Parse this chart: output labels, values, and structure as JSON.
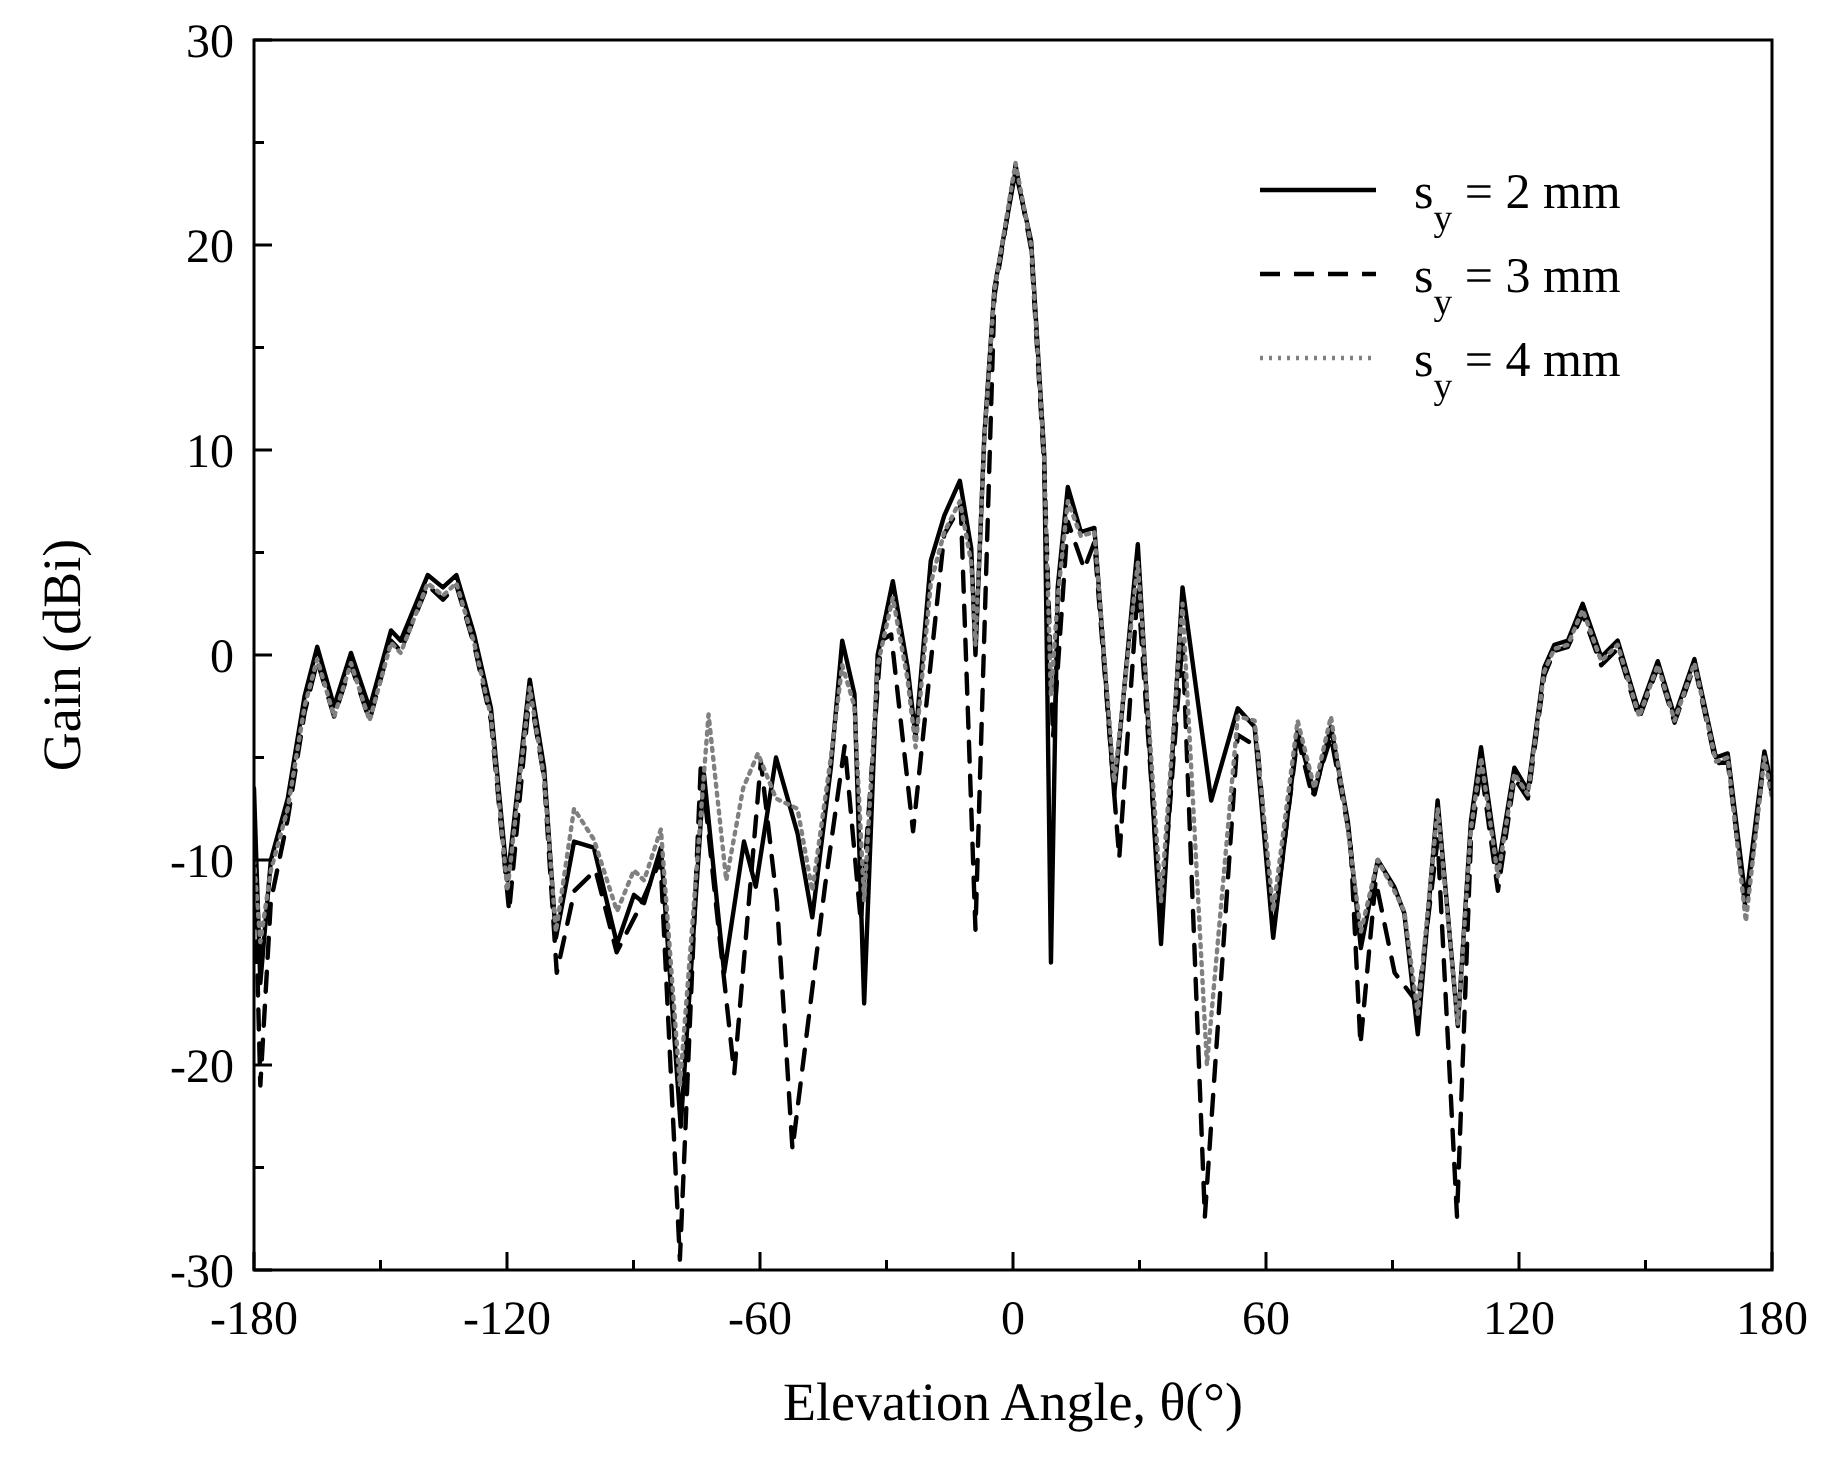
{
  "chart_data": {
    "type": "line",
    "xlabel": "Elevation Angle, θ(°)",
    "ylabel": "Gain (dBi)",
    "xlim": [
      -180,
      180
    ],
    "ylim": [
      -30,
      30
    ],
    "xticks": [
      -180,
      {
        "value": -150,
        "label": null
      },
      -120,
      {
        "value": -90,
        "label": null
      },
      -60,
      {
        "value": -30,
        "label": null
      },
      0,
      {
        "value": 30,
        "label": null
      },
      60,
      {
        "value": 90,
        "label": null
      },
      120,
      {
        "value": 150,
        "label": null
      },
      180
    ],
    "yticks": [
      -30,
      {
        "value": -25,
        "label": null
      },
      -20,
      {
        "value": -15,
        "label": null
      },
      -10,
      {
        "value": -5,
        "label": null
      },
      0,
      {
        "value": 5,
        "label": null
      },
      10,
      {
        "value": 15,
        "label": null
      },
      20,
      {
        "value": 25,
        "label": null
      },
      30
    ],
    "grid": false,
    "legend": "top right",
    "series": [
      {
        "name": "s$_{y}$ = 2 mm",
        "color": "#000000",
        "line_style": "solid",
        "x": [
          -180,
          -178.5,
          -176,
          -172,
          -168,
          -165,
          -161,
          -157,
          -152.6,
          -147.5,
          -145.2,
          -138.8,
          -135.2,
          -132,
          -127.8,
          -123.8,
          -119.9,
          -114.6,
          -111.2,
          -108.4,
          -104.1,
          -99.4,
          -93.9,
          -89.9,
          -87.5,
          -83.5,
          -78.8,
          -73.3,
          -68.5,
          -63.8,
          -61,
          -56.2,
          -51.1,
          -47.6,
          -43.2,
          -40.5,
          -37.6,
          -35.3,
          -32.1,
          -28.5,
          -25,
          -23.1,
          -19.5,
          -16.3,
          -12.6,
          -9.9,
          -8.9,
          -6.8,
          -4.4,
          0.6,
          4.3,
          7.4,
          9,
          10.6,
          13,
          16.1,
          19.3,
          24,
          29.6,
          35.1,
          40.2,
          47,
          53.3,
          57.3,
          61.7,
          67.5,
          71.5,
          75.4,
          79.4,
          82.5,
          86.5,
          90.4,
          92.8,
          96,
          100.7,
          105.5,
          108.6,
          111,
          115,
          118.9,
          122.1,
          126,
          128.4,
          131.6,
          135.1,
          139.5,
          143.4,
          148.5,
          152.9,
          156.9,
          161.6,
          166.7,
          169.5,
          173.8,
          178.2,
          180
        ],
        "values": [
          -6.5,
          -16,
          -10,
          -7,
          -2,
          0.4,
          -2.5,
          0.1,
          -2.6,
          1.2,
          0.7,
          3.9,
          3.3,
          3.9,
          1,
          -2.6,
          -11,
          -1.2,
          -5.5,
          -13.8,
          -9.1,
          -9.4,
          -14.1,
          -11.7,
          -12.1,
          -9.4,
          -23,
          -5.8,
          -15.5,
          -9.1,
          -11.3,
          -5,
          -8.7,
          -12.8,
          -5.5,
          0.7,
          -1.9,
          -17,
          0,
          3.6,
          -0.6,
          -4,
          4.6,
          6.8,
          8.5,
          5.2,
          0,
          10.7,
          17.9,
          23.6,
          20.2,
          9.8,
          -15,
          3.3,
          8.2,
          6,
          6.2,
          -6.8,
          5.4,
          -14.1,
          3.3,
          -7.1,
          -2.6,
          -3.5,
          -13.8,
          -3.7,
          -6.8,
          -3.5,
          -8.1,
          -14.3,
          -10,
          -11.3,
          -12.6,
          -18.5,
          -7.1,
          -18.1,
          -8.1,
          -4.5,
          -10.4,
          -5.5,
          -6.6,
          -0.6,
          0.5,
          0.7,
          2.5,
          -0.1,
          0.7,
          -2.8,
          -0.3,
          -3,
          -0.2,
          -5,
          -4.8,
          -12,
          -4.7,
          -6.5
        ]
      },
      {
        "name": "s$_{y}$ = 3 mm",
        "color": "#000000",
        "line_style": "dashed",
        "x": [
          -180,
          -178.5,
          -176,
          -172,
          -168,
          -165,
          -161,
          -157,
          -152.6,
          -147.5,
          -145.2,
          -138.8,
          -135.2,
          -132,
          -127.8,
          -123.8,
          -119.5,
          -114.6,
          -111.2,
          -108.2,
          -104,
          -99,
          -94,
          -89,
          -83.6,
          -79,
          -74,
          -70,
          -66.1,
          -59.8,
          -56,
          -52.3,
          -44.6,
          -39.9,
          -36.1,
          -31.3,
          -28.9,
          -23.7,
          -16.3,
          -12.4,
          -8.9,
          -4.4,
          0.6,
          4.3,
          7.4,
          9.5,
          13,
          16.9,
          19.3,
          25.2,
          29.6,
          35.1,
          40.2,
          45.5,
          53.3,
          58,
          61.7,
          67.5,
          71,
          75.4,
          80,
          82.4,
          86,
          90.5,
          96,
          100.7,
          105.3,
          108.6,
          111,
          115,
          118.9,
          122.1,
          126,
          128.4,
          131.6,
          135.1,
          139.5,
          143.4,
          148.5,
          152.9,
          156.9,
          161.6,
          166.7,
          169.5,
          173.8,
          178.2,
          180
        ],
        "values": [
          -9,
          -21,
          -12,
          -8,
          -2.8,
          -0.3,
          -3,
          -0.5,
          -3.2,
          0.7,
          0.2,
          3.4,
          2.7,
          3.4,
          0.5,
          -3.2,
          -12.5,
          -1.8,
          -6,
          -15.5,
          -11.5,
          -10.5,
          -14.5,
          -12.5,
          -10,
          -29.5,
          -5.2,
          -13,
          -20.4,
          -5.2,
          -12,
          -24.1,
          -11.3,
          -4.4,
          -13,
          0.7,
          1,
          -8.6,
          5.9,
          7.3,
          -13.4,
          17.5,
          23.9,
          19.8,
          9.2,
          -4,
          6.5,
          4.2,
          5.5,
          -9.9,
          3.3,
          -13,
          0.7,
          -27.4,
          -3.9,
          -4.5,
          -13.5,
          -4,
          -6.9,
          -4,
          -9,
          -19,
          -11,
          -15.5,
          -17,
          -9,
          -27.4,
          -9,
          -5.5,
          -11.5,
          -6,
          -7,
          -1,
          0.2,
          0.4,
          2,
          -0.5,
          0.3,
          -3.1,
          -0.6,
          -3.3,
          -0.5,
          -5.3,
          -5.2,
          -12.5,
          -5,
          -6.8
        ]
      },
      {
        "name": "s$_{y}$ = 4 mm",
        "color": "#808080",
        "line_style": "dotted",
        "x": [
          -180,
          -178.5,
          -176,
          -172,
          -168,
          -165,
          -161,
          -157,
          -152.6,
          -147.5,
          -145.2,
          -138.8,
          -135.2,
          -132,
          -127.8,
          -123.8,
          -119.9,
          -114.6,
          -111.2,
          -108.4,
          -104.1,
          -99.4,
          -93.9,
          -89.9,
          -87.5,
          -83.5,
          -79,
          -72.2,
          -68,
          -64,
          -60.5,
          -56.2,
          -51.1,
          -47.6,
          -43.2,
          -40.5,
          -37.6,
          -35.3,
          -32.1,
          -28.5,
          -25,
          -23.1,
          -19.5,
          -16.3,
          -12.6,
          -9.9,
          -8.9,
          -6.8,
          -4.4,
          0.6,
          4.3,
          7.4,
          9,
          10.6,
          13,
          16.1,
          19.3,
          24,
          29.6,
          35.1,
          40.2,
          46,
          53.3,
          57.3,
          61.7,
          67.5,
          71.5,
          75.4,
          79.4,
          82.5,
          86.5,
          90.4,
          92.8,
          96,
          100.7,
          105.5,
          108.6,
          111,
          115,
          118.9,
          122.1,
          126,
          128.4,
          131.6,
          135.1,
          139.5,
          143.4,
          148.5,
          152.9,
          156.9,
          161.6,
          166.7,
          169.5,
          173.8,
          178.2,
          180
        ],
        "values": [
          -10,
          -14,
          -10.5,
          -7.5,
          -2.5,
          -0.2,
          -3,
          -0.4,
          -3.2,
          0.6,
          0.1,
          3.5,
          2.9,
          3.5,
          0.6,
          -3,
          -11.5,
          -1.6,
          -6,
          -13.5,
          -7.5,
          -9,
          -12.5,
          -10.5,
          -11,
          -8.5,
          -21,
          -2.9,
          -11,
          -6.5,
          -4.8,
          -7,
          -7.5,
          -11.5,
          -5,
          -0.5,
          -2.5,
          -12,
          -0.5,
          2.8,
          -1.2,
          -4.5,
          3.5,
          6,
          7.5,
          4.5,
          0.5,
          10.5,
          17.8,
          24,
          20,
          9.5,
          -2,
          2.8,
          7.5,
          5.8,
          6,
          -6.2,
          4.5,
          -12,
          2.5,
          -20,
          -3,
          -3.2,
          -12.5,
          -3.2,
          -6.5,
          -3,
          -8.5,
          -13.5,
          -10,
          -11.5,
          -12.5,
          -17.5,
          -7.5,
          -18,
          -8.5,
          -5,
          -10.8,
          -5.8,
          -6.8,
          -0.8,
          0.3,
          0.5,
          2.2,
          -0.3,
          0.5,
          -3,
          -0.5,
          -3.2,
          -0.4,
          -5.2,
          -5,
          -13,
          -5,
          -7
        ]
      }
    ]
  }
}
